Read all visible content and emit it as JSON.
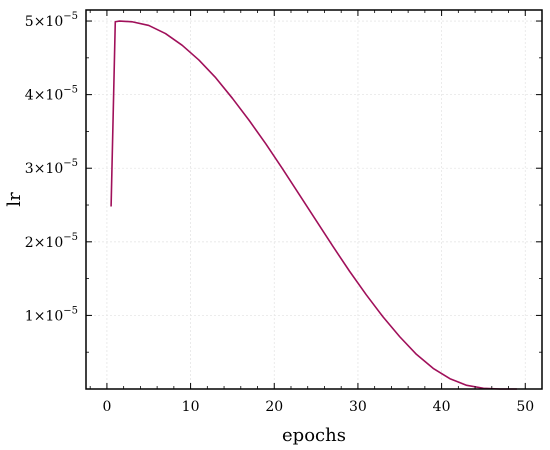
{
  "chart_data": {
    "type": "line",
    "xlabel": "epochs",
    "ylabel": "lr",
    "xlim": [
      -2.5,
      52
    ],
    "ylim": [
      0.0,
      5.15e-05
    ],
    "grid": true,
    "x_ticks": [
      0,
      10,
      20,
      30,
      40,
      50
    ],
    "x_tick_labels": [
      "0",
      "10",
      "20",
      "30",
      "40",
      "50"
    ],
    "y_ticks": [
      1e-05,
      2e-05,
      3e-05,
      4e-05,
      5e-05
    ],
    "y_tick_labels": [
      {
        "mant": "1",
        "exp": "−5"
      },
      {
        "mant": "2",
        "exp": "−5"
      },
      {
        "mant": "3",
        "exp": "−5"
      },
      {
        "mant": "4",
        "exp": "−5"
      },
      {
        "mant": "5",
        "exp": "−5"
      }
    ],
    "line_color": "#a0105a",
    "series": [
      {
        "x": [
          0.5,
          1.0,
          1.5,
          3,
          5,
          7,
          9,
          11,
          13,
          15,
          17,
          19,
          21,
          23,
          25,
          27,
          29,
          31,
          33,
          35,
          37,
          39,
          41,
          43,
          45,
          47,
          49
        ],
        "y": [
          2.48e-05,
          4.99e-05,
          5e-05,
          4.99e-05,
          4.94e-05,
          4.83e-05,
          4.67e-05,
          4.47e-05,
          4.23e-05,
          3.95e-05,
          3.65e-05,
          3.33e-05,
          2.99e-05,
          2.64e-05,
          2.29e-05,
          1.94e-05,
          1.6e-05,
          1.28e-05,
          9.8e-06,
          7.1e-06,
          4.7e-06,
          2.8e-06,
          1.4e-06,
          5e-07,
          1e-07,
          0.0,
          0.0
        ]
      }
    ]
  }
}
